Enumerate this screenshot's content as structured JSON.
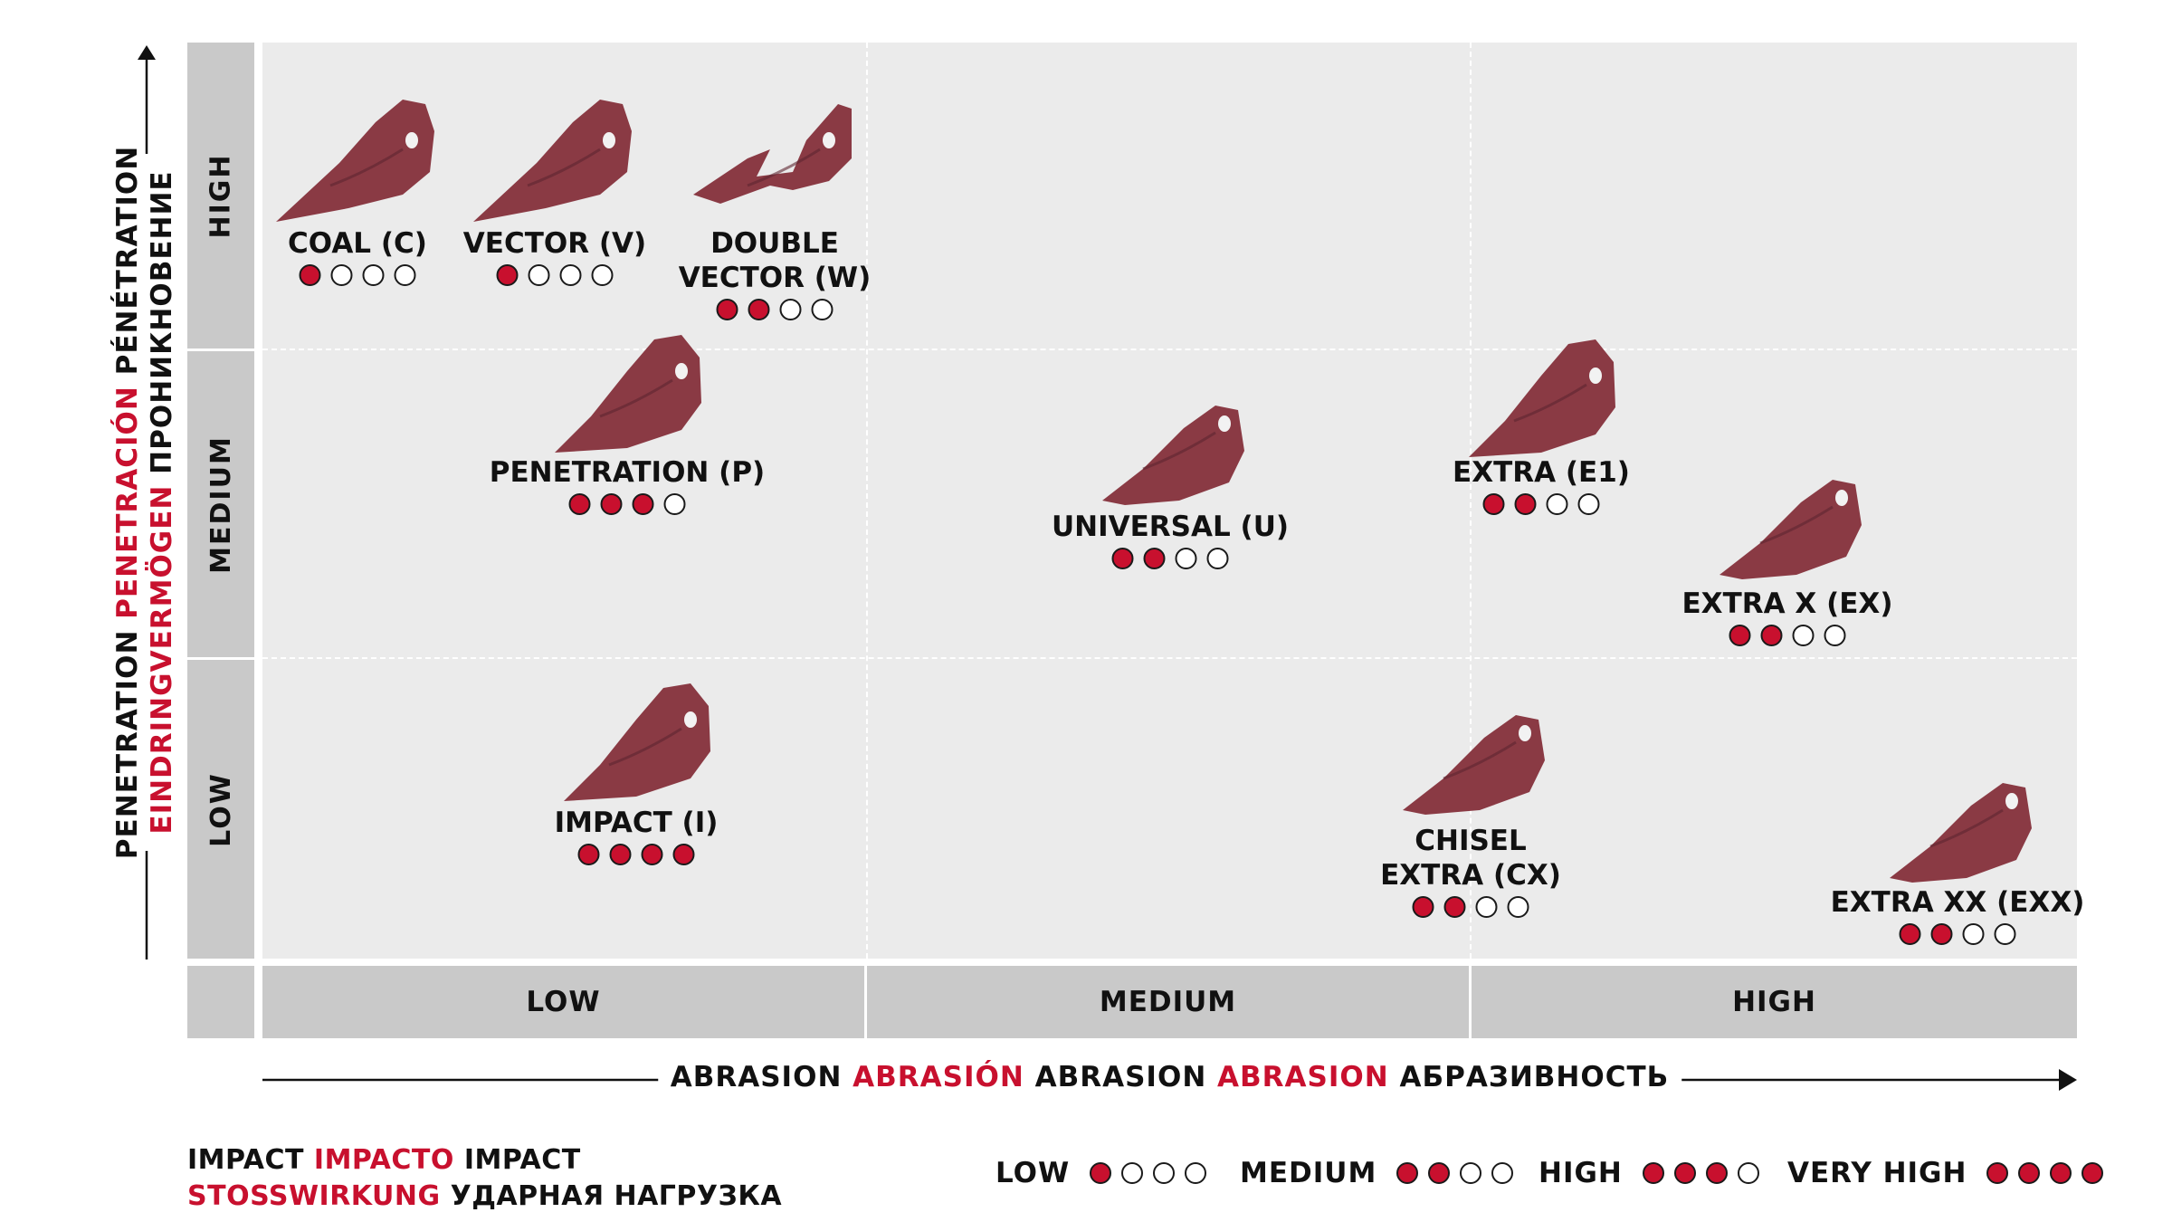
{
  "y_axis": {
    "title_line1": [
      {
        "text": "PENETRATION ",
        "accent": false
      },
      {
        "text": "PENETRACIÓN ",
        "accent": true
      },
      {
        "text": "PÉNÉTRATION",
        "accent": false
      }
    ],
    "title_line2": [
      {
        "text": "EINDRINGVERMÖGEN ",
        "accent": true
      },
      {
        "text": "ПРОНИКНОВЕНИЕ",
        "accent": false
      }
    ],
    "levels": [
      "HIGH",
      "MEDIUM",
      "LOW"
    ]
  },
  "x_axis": {
    "title": [
      {
        "text": "ABRASION ",
        "accent": false
      },
      {
        "text": "ABRASIÓN ",
        "accent": true
      },
      {
        "text": "ABRASION ",
        "accent": false
      },
      {
        "text": "ABRASION ",
        "accent": true
      },
      {
        "text": "АБРАЗИВНОСТЬ",
        "accent": false
      }
    ],
    "levels": [
      "LOW",
      "MEDIUM",
      "HIGH"
    ]
  },
  "teeth": [
    {
      "name": "COAL (C)",
      "lines": [
        "COAL (C)"
      ],
      "penetration": "HIGH",
      "abrasion": "LOW",
      "impact": 1
    },
    {
      "name": "VECTOR (V)",
      "lines": [
        "VECTOR (V)"
      ],
      "penetration": "HIGH",
      "abrasion": "LOW",
      "impact": 1
    },
    {
      "name": "DOUBLE VECTOR (W)",
      "lines": [
        "DOUBLE",
        "VECTOR (W)"
      ],
      "penetration": "HIGH",
      "abrasion": "LOW",
      "impact": 2
    },
    {
      "name": "PENETRATION (P)",
      "lines": [
        "PENETRATION (P)"
      ],
      "penetration": "MEDIUM",
      "abrasion": "LOW",
      "impact": 3
    },
    {
      "name": "UNIVERSAL (U)",
      "lines": [
        "UNIVERSAL (U)"
      ],
      "penetration": "MEDIUM",
      "abrasion": "MEDIUM",
      "impact": 2
    },
    {
      "name": "EXTRA (E1)",
      "lines": [
        "EXTRA (E1)"
      ],
      "penetration": "MEDIUM",
      "abrasion": "HIGH",
      "impact": 2
    },
    {
      "name": "EXTRA X (EX)",
      "lines": [
        "EXTRA X (EX)"
      ],
      "penetration": "MEDIUM",
      "abrasion": "HIGH",
      "impact": 2
    },
    {
      "name": "IMPACT (I)",
      "lines": [
        "IMPACT (I)"
      ],
      "penetration": "LOW",
      "abrasion": "LOW",
      "impact": 4
    },
    {
      "name": "CHISEL EXTRA (CX)",
      "lines": [
        "CHISEL",
        "EXTRA (CX)"
      ],
      "penetration": "LOW",
      "abrasion": "HIGH",
      "impact": 2
    },
    {
      "name": "EXTRA XX (EXX)",
      "lines": [
        "EXTRA XX (EXX)"
      ],
      "penetration": "LOW",
      "abrasion": "HIGH",
      "impact": 2
    }
  ],
  "legend": {
    "title_line1": [
      {
        "text": "IMPACT ",
        "accent": false
      },
      {
        "text": "IMPACTO ",
        "accent": true
      },
      {
        "text": "IMPACT",
        "accent": false
      }
    ],
    "title_line2": [
      {
        "text": "STOSSWIRKUNG ",
        "accent": true
      },
      {
        "text": "УДАРНАЯ НАГРУЗКА",
        "accent": false
      }
    ],
    "levels": [
      {
        "label": "LOW",
        "filled": 1
      },
      {
        "label": "MEDIUM",
        "filled": 2
      },
      {
        "label": "HIGH",
        "filled": 3
      },
      {
        "label": "VERY HIGH",
        "filled": 4
      }
    ],
    "max_dots": 4
  },
  "colors": {
    "accent": "#c8102e",
    "tooth": "#8a3a44",
    "grid_bg": "#ebebeb",
    "header_bg": "#c9c9c9"
  }
}
